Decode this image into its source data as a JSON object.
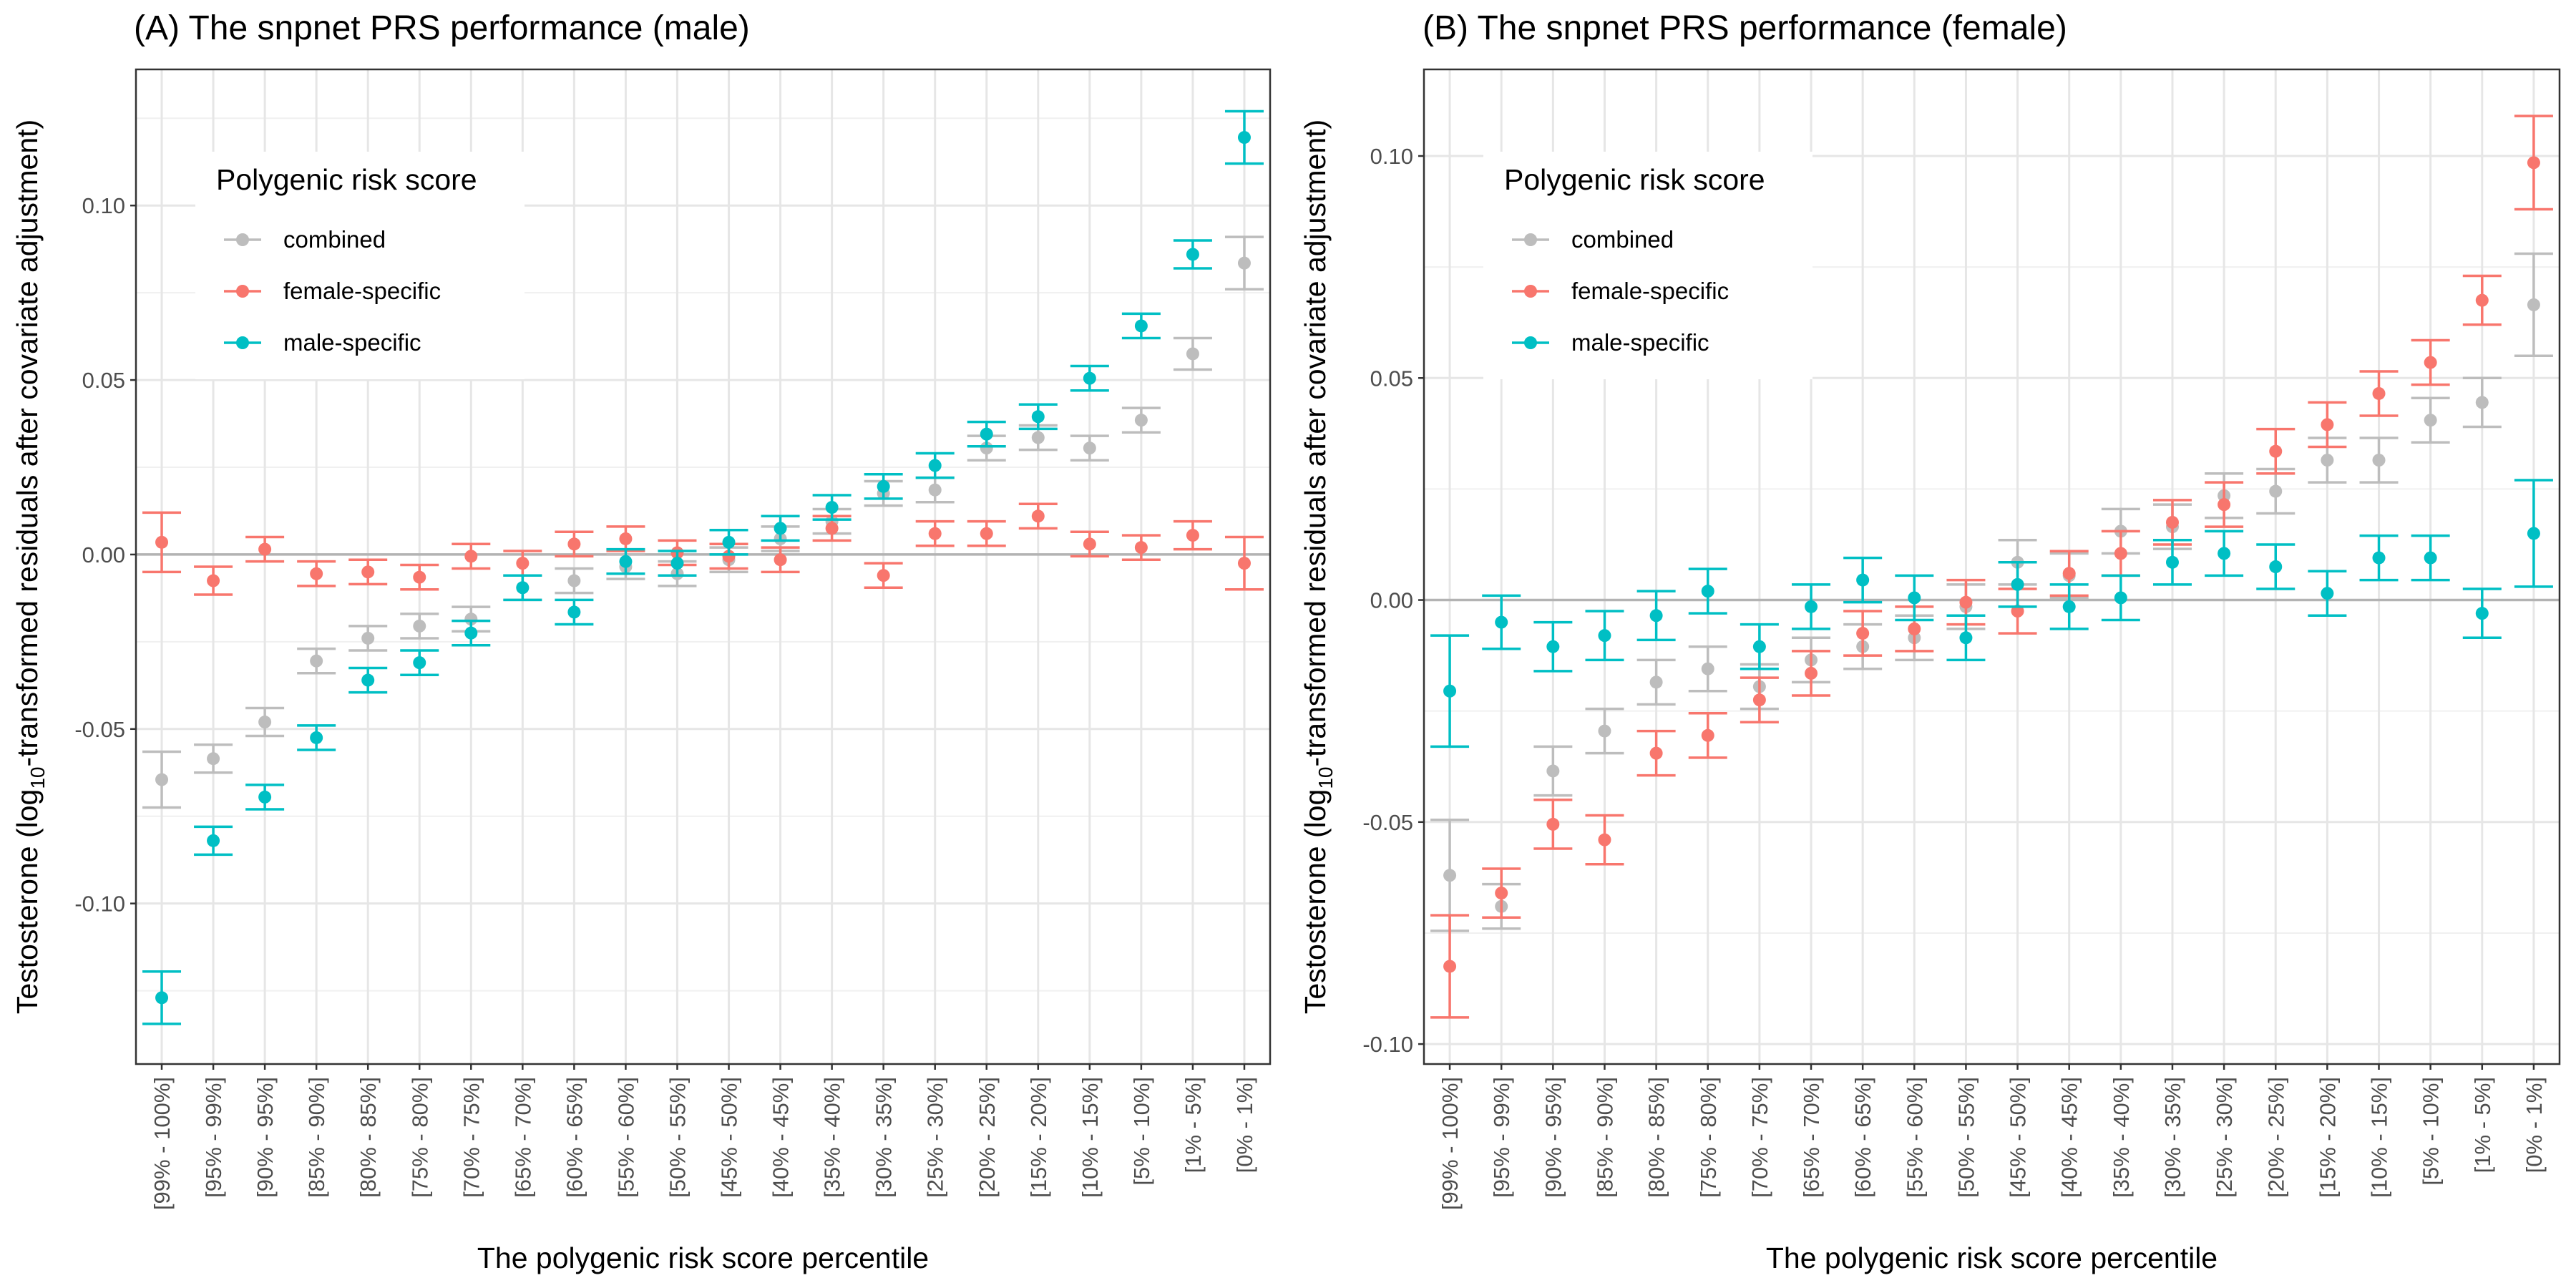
{
  "chart_data": [
    {
      "type": "scatter",
      "title": "(A) The snpnet PRS performance (male)",
      "xlabel": "The polygenic risk score percentile",
      "ylabel_parts": [
        "Testosterone (log",
        "10",
        "-transformed residuals after covariate adjustment)"
      ],
      "ylim": [
        -0.146,
        0.139
      ],
      "yticks": [
        0.1,
        0.05,
        0.0,
        -0.05,
        -0.1
      ],
      "ytick_labels": [
        "0.10",
        "0.05",
        "0.00",
        "-0.05",
        "-0.10"
      ],
      "reference_line": 0,
      "grid": true,
      "legend": {
        "title": "Polygenic risk score",
        "position": "top-left",
        "items": [
          "combined",
          "female-specific",
          "male-specific"
        ]
      },
      "categories": [
        "[99% - 100%]",
        "[95% - 99%]",
        "[90% - 95%]",
        "[85% - 90%]",
        "[80% - 85%]",
        "[75% - 80%]",
        "[70% - 75%]",
        "[65% - 70%]",
        "[60% - 65%]",
        "[55% - 60%]",
        "[50% - 55%]",
        "[45% - 50%]",
        "[40% - 45%]",
        "[35% - 40%]",
        "[30% - 35%]",
        "[25% - 30%]",
        "[20% - 25%]",
        "[15% - 20%]",
        "[10% - 15%]",
        "[5% - 10%]",
        "[1% - 5%]",
        "[0% - 1%]"
      ],
      "series": [
        {
          "name": "combined",
          "color": "#bdbdbd",
          "values": [
            -0.0645,
            -0.0585,
            -0.048,
            -0.0305,
            -0.024,
            -0.0205,
            -0.0185,
            -0.0095,
            -0.0075,
            -0.0035,
            -0.0055,
            -0.0015,
            0.0045,
            0.0095,
            0.0175,
            0.0185,
            0.0305,
            0.0335,
            0.0305,
            0.0385,
            0.0575,
            0.0835
          ],
          "err": [
            0.008,
            0.004,
            0.004,
            0.0035,
            0.0035,
            0.0035,
            0.0035,
            0.0035,
            0.0035,
            0.0035,
            0.0035,
            0.0035,
            0.0035,
            0.0035,
            0.0035,
            0.0035,
            0.0035,
            0.0035,
            0.0035,
            0.0035,
            0.0045,
            0.0075
          ]
        },
        {
          "name": "female-specific",
          "color": "#f8766d",
          "values": [
            0.0035,
            -0.0075,
            0.0015,
            -0.0055,
            -0.005,
            -0.0065,
            -0.0005,
            -0.0025,
            0.003,
            0.0045,
            0.0005,
            -0.0005,
            -0.0015,
            0.0075,
            -0.006,
            0.006,
            0.006,
            0.011,
            0.003,
            0.002,
            0.0055,
            -0.0025
          ],
          "err": [
            0.0085,
            0.004,
            0.0035,
            0.0035,
            0.0035,
            0.0035,
            0.0035,
            0.0035,
            0.0035,
            0.0035,
            0.0035,
            0.0035,
            0.0035,
            0.0035,
            0.0035,
            0.0035,
            0.0035,
            0.0035,
            0.0035,
            0.0035,
            0.004,
            0.0075
          ]
        },
        {
          "name": "male-specific",
          "color": "#00bfc4",
          "values": [
            -0.127,
            -0.082,
            -0.0695,
            -0.0525,
            -0.036,
            -0.031,
            -0.0225,
            -0.0095,
            -0.0165,
            -0.002,
            -0.0025,
            0.0035,
            0.0075,
            0.0135,
            0.0195,
            0.0255,
            0.0345,
            0.0395,
            0.0505,
            0.0655,
            0.086,
            0.1195
          ],
          "err": [
            0.0075,
            0.004,
            0.0035,
            0.0035,
            0.0035,
            0.0035,
            0.0035,
            0.0035,
            0.0035,
            0.0035,
            0.0035,
            0.0035,
            0.0035,
            0.0035,
            0.0035,
            0.0035,
            0.0035,
            0.0035,
            0.0035,
            0.0035,
            0.004,
            0.0075
          ]
        }
      ]
    },
    {
      "type": "scatter",
      "title": "(B) The snpnet PRS performance (female)",
      "xlabel": "The polygenic risk score percentile",
      "ylabel_parts": [
        "Testosterone (log",
        "10",
        "-transformed residuals after covariate adjustment)"
      ],
      "ylim": [
        -0.1045,
        0.1195
      ],
      "yticks": [
        0.1,
        0.05,
        0.0,
        -0.05,
        -0.1
      ],
      "ytick_labels": [
        "0.10",
        "0.05",
        "0.00",
        "-0.05",
        "-0.10"
      ],
      "reference_line": 0,
      "grid": true,
      "legend": {
        "title": "Polygenic risk score",
        "position": "top-left",
        "items": [
          "combined",
          "female-specific",
          "male-specific"
        ]
      },
      "categories": [
        "[99% - 100%]",
        "[95% - 99%]",
        "[90% - 95%]",
        "[85% - 90%]",
        "[80% - 85%]",
        "[75% - 80%]",
        "[70% - 75%]",
        "[65% - 70%]",
        "[60% - 65%]",
        "[55% - 60%]",
        "[50% - 55%]",
        "[45% - 50%]",
        "[40% - 45%]",
        "[35% - 40%]",
        "[30% - 35%]",
        "[25% - 30%]",
        "[20% - 25%]",
        "[15% - 20%]",
        "[10% - 15%]",
        "[5% - 10%]",
        "[1% - 5%]",
        "[0% - 1%]"
      ],
      "series": [
        {
          "name": "combined",
          "color": "#bdbdbd",
          "values": [
            -0.062,
            -0.069,
            -0.0385,
            -0.0295,
            -0.0185,
            -0.0155,
            -0.0195,
            -0.0135,
            -0.0105,
            -0.0085,
            -0.0015,
            0.0085,
            0.0055,
            0.0155,
            0.0165,
            0.0235,
            0.0245,
            0.0315,
            0.0315,
            0.0405,
            0.0445,
            0.0665
          ],
          "err": [
            0.0125,
            0.005,
            0.0055,
            0.005,
            0.005,
            0.005,
            0.005,
            0.005,
            0.005,
            0.005,
            0.005,
            0.005,
            0.005,
            0.005,
            0.005,
            0.005,
            0.005,
            0.005,
            0.005,
            0.005,
            0.0055,
            0.0115
          ]
        },
        {
          "name": "female-specific",
          "color": "#f8766d",
          "values": [
            -0.0825,
            -0.066,
            -0.0505,
            -0.054,
            -0.0345,
            -0.0305,
            -0.0225,
            -0.0165,
            -0.0075,
            -0.0065,
            -0.0005,
            -0.0025,
            0.006,
            0.0105,
            0.0175,
            0.0215,
            0.0335,
            0.0395,
            0.0465,
            0.0535,
            0.0675,
            0.0985
          ],
          "err": [
            0.0115,
            0.0055,
            0.0055,
            0.0055,
            0.005,
            0.005,
            0.005,
            0.005,
            0.005,
            0.005,
            0.005,
            0.005,
            0.005,
            0.005,
            0.005,
            0.005,
            0.005,
            0.005,
            0.005,
            0.005,
            0.0055,
            0.0105
          ]
        },
        {
          "name": "male-specific",
          "color": "#00bfc4",
          "values": [
            -0.0205,
            -0.005,
            -0.0105,
            -0.008,
            -0.0035,
            0.002,
            -0.0105,
            -0.0015,
            0.0045,
            0.0005,
            -0.0085,
            0.0035,
            -0.0015,
            0.0005,
            0.0085,
            0.0105,
            0.0075,
            0.0015,
            0.0095,
            0.0095,
            -0.003,
            0.015
          ]
        },
        {
          "name": "_pad",
          "hidden": true
        }
      ]
    }
  ],
  "male_specific_female_err": [
    0.0125,
    0.006,
    0.0055,
    0.0055,
    0.0055,
    0.005,
    0.005,
    0.005,
    0.005,
    0.005,
    0.005,
    0.005,
    0.005,
    0.005,
    0.005,
    0.005,
    0.005,
    0.005,
    0.005,
    0.005,
    0.0055,
    0.012
  ]
}
